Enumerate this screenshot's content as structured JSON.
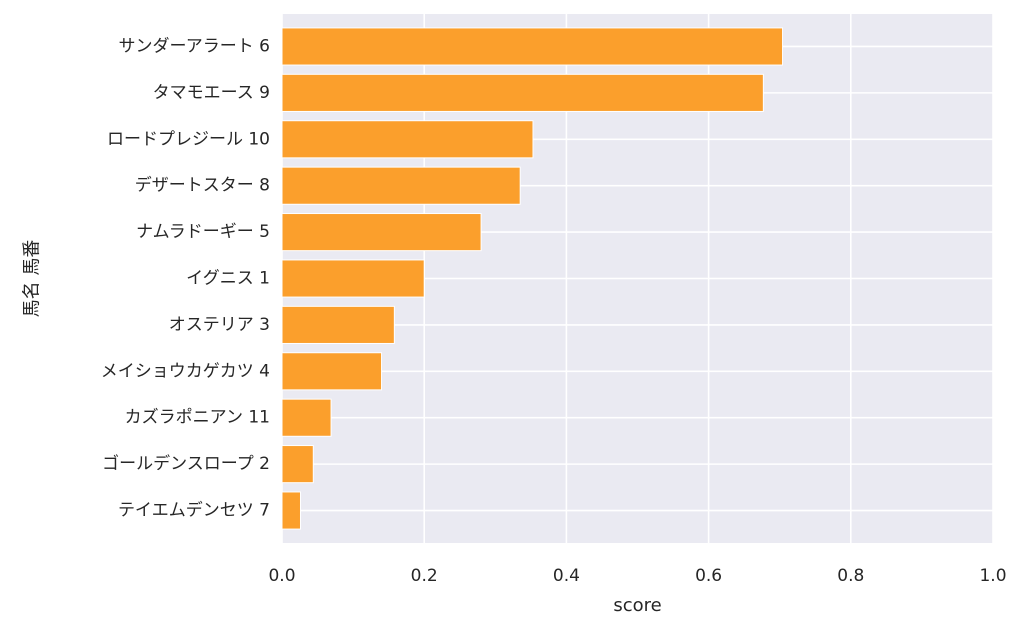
{
  "chart_data": {
    "type": "bar",
    "orientation": "horizontal",
    "xlabel": "score",
    "ylabel": "馬名 馬番",
    "xlim": [
      0.0,
      1.0
    ],
    "xticks": [
      "0.0",
      "0.2",
      "0.4",
      "0.6",
      "0.8",
      "1.0"
    ],
    "xtick_values": [
      0.0,
      0.2,
      0.4,
      0.6,
      0.8,
      1.0
    ],
    "grid": true,
    "categories": [
      "サンダーアラート 6",
      "タマモエース 9",
      "ロードプレジール 10",
      "デザートスター 8",
      "ナムラドーギー 5",
      "イグニス 1",
      "オステリア 3",
      "メイショウカゲカツ 4",
      "カズラポニアン 11",
      "ゴールデンスロープ 2",
      "テイエムデンセツ 7"
    ],
    "values": [
      0.704,
      0.677,
      0.353,
      0.335,
      0.28,
      0.2,
      0.158,
      0.14,
      0.069,
      0.044,
      0.026
    ],
    "colors": {
      "bar": "#fb9f2c",
      "bar_edge": "#ffffff",
      "background": "#eaeaf2",
      "grid": "#ffffff"
    }
  }
}
